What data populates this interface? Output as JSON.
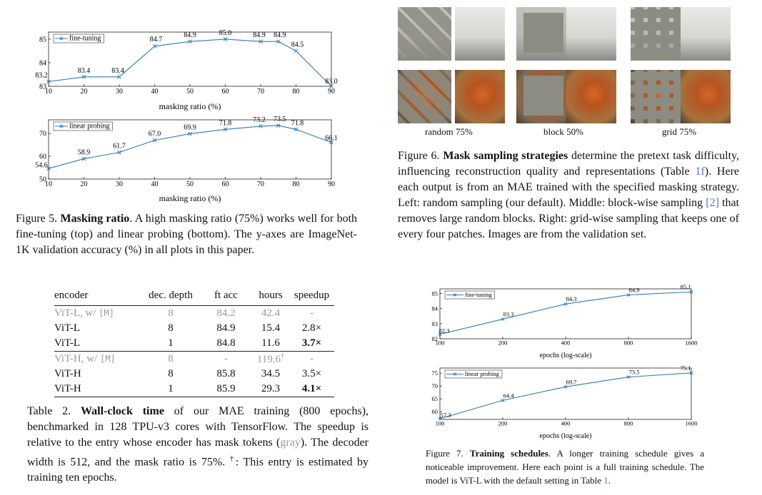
{
  "fig5": {
    "caption_label": "Figure 5.",
    "caption_title": "Masking ratio",
    "caption_body": ". A high masking ratio (75%) works well for both fine-tuning (top) and linear probing (bottom). The y-axes are ImageNet-1K validation accuracy (%) in all plots in this paper.",
    "xlabel": "masking ratio (%)"
  },
  "fig6": {
    "caption_label": "Figure 6.",
    "caption_title": "Mask sampling strategies",
    "caption_p1": " determine the pretext task difficulty, influencing reconstruction quality and representations (Table ",
    "caption_ref1": "1f",
    "caption_p2": "). Here each output is from an MAE trained with the specified masking strategy. Left: random sampling (our default). Middle: block-wise sampling ",
    "caption_ref2": "[2]",
    "caption_p3": " that removes large random blocks. Right: grid-wise sampling that keeps one of every four patches. Images are from the validation set.",
    "labels": [
      "random 75%",
      "block 50%",
      "grid 75%"
    ]
  },
  "table2": {
    "headers": [
      "encoder",
      "dec. depth",
      "ft acc",
      "hours",
      "speedup"
    ],
    "rows": [
      {
        "encoder": "ViT-L, w/ ",
        "token": "[M]",
        "dec": "8",
        "ft": "84.2",
        "hours": "42.4",
        "speed": "-"
      },
      {
        "encoder": "ViT-L",
        "token": "",
        "dec": "8",
        "ft": "84.9",
        "hours": "15.4",
        "speed": "2.8×"
      },
      {
        "encoder": "ViT-L",
        "token": "",
        "dec": "1",
        "ft": "84.8",
        "hours": "11.6",
        "speed": "3.7×"
      },
      {
        "encoder": "ViT-H, w/ ",
        "token": "[M]",
        "dec": "8",
        "ft": "-",
        "hours": "119.6",
        "dagger": "†",
        "speed": "-"
      },
      {
        "encoder": "ViT-H",
        "token": "",
        "dec": "8",
        "ft": "85.8",
        "hours": "34.5",
        "speed": "3.5×"
      },
      {
        "encoder": "ViT-H",
        "token": "",
        "dec": "1",
        "ft": "85.9",
        "hours": "29.3",
        "speed": "4.1×"
      }
    ],
    "caption_label": "Table 2.",
    "caption_title": "Wall-clock time",
    "caption_p1": " of our MAE training (800 epochs), benchmarked in 128 TPU-v3 cores with TensorFlow. The speedup is relative to the entry whose encoder has mask tokens (",
    "caption_gray": "gray",
    "caption_p2": "). The decoder width is 512, and the mask ratio is 75%. ",
    "caption_dagger": "†",
    "caption_p3": ": This entry is estimated by training ten epochs."
  },
  "fig7": {
    "caption_label": "Figure 7.",
    "caption_title": "Training schedules",
    "caption_p1": ". A longer training schedule gives a noticeable improvement. Here each point is a full training schedule. The model is ViT-L with the default setting in Table ",
    "caption_ref": "1",
    "caption_p2": ".",
    "xlabel": "epochs (log-scale)"
  },
  "chart_data": [
    {
      "type": "line",
      "id": "fig5-finetune",
      "x": [
        10,
        20,
        30,
        40,
        50,
        60,
        70,
        75,
        80,
        90
      ],
      "series": [
        {
          "name": "fine-tuning",
          "values": [
            83.2,
            83.4,
            83.4,
            84.7,
            84.9,
            85.0,
            84.9,
            84.9,
            84.5,
            83.0
          ]
        }
      ],
      "xticks": [
        10,
        20,
        30,
        40,
        50,
        60,
        70,
        80,
        90
      ],
      "yticks": [
        83,
        84,
        85
      ],
      "xlim": [
        10,
        90
      ],
      "ylim": [
        83,
        85.3
      ],
      "xlabel": "masking ratio (%)",
      "ylabel": "",
      "legend": "top-left"
    },
    {
      "type": "line",
      "id": "fig5-linear",
      "x": [
        10,
        20,
        30,
        40,
        50,
        60,
        70,
        75,
        80,
        90
      ],
      "series": [
        {
          "name": "linear probing",
          "values": [
            54.6,
            58.9,
            61.7,
            67.0,
            69.9,
            71.8,
            73.2,
            73.5,
            71.8,
            66.1
          ]
        }
      ],
      "xticks": [
        10,
        20,
        30,
        40,
        50,
        60,
        70,
        80,
        90
      ],
      "yticks": [
        50,
        60,
        70
      ],
      "xlim": [
        10,
        90
      ],
      "ylim": [
        50,
        76
      ],
      "xlabel": "masking ratio (%)",
      "ylabel": "",
      "legend": "top-left"
    },
    {
      "type": "line",
      "id": "fig7-finetune",
      "x": [
        100,
        200,
        400,
        800,
        1600
      ],
      "log_x": true,
      "series": [
        {
          "name": "fine-tuning",
          "values": [
            82.3,
            83.3,
            84.3,
            84.9,
            85.1
          ]
        }
      ],
      "xticks": [
        100,
        200,
        400,
        800,
        1600
      ],
      "yticks": [
        82,
        83,
        84,
        85
      ],
      "xlim": [
        100,
        1600
      ],
      "ylim": [
        82,
        85.3
      ],
      "xlabel": "epochs (log-scale)",
      "ylabel": "",
      "legend": "top-left"
    },
    {
      "type": "line",
      "id": "fig7-linear",
      "x": [
        100,
        200,
        400,
        800,
        1600
      ],
      "log_x": true,
      "series": [
        {
          "name": "linear probing",
          "values": [
            57.3,
            64.4,
            69.7,
            73.5,
            75.1
          ]
        }
      ],
      "xticks": [
        100,
        200,
        400,
        800,
        1600
      ],
      "yticks": [
        60,
        65,
        70,
        75
      ],
      "xlim": [
        100,
        1600
      ],
      "ylim": [
        57,
        77
      ],
      "xlabel": "epochs (log-scale)",
      "ylabel": "",
      "legend": "top-left"
    }
  ]
}
